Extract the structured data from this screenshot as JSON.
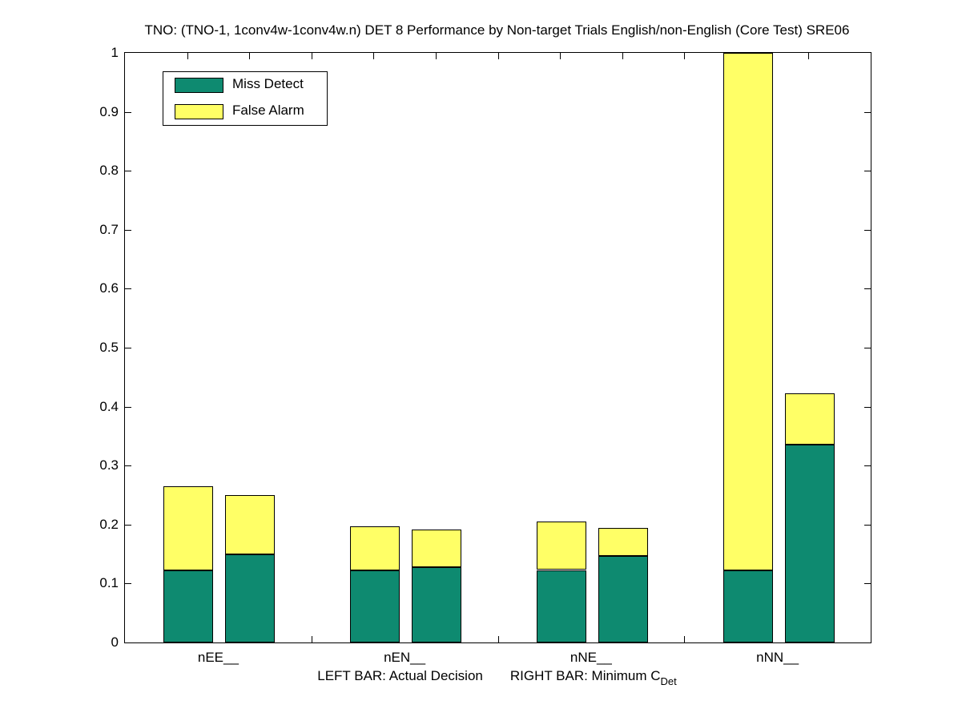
{
  "title": "TNO: (TNO-1, 1conv4w-1conv4w.n) DET 8 Performance by Non-target Trials English/non-English (Core Test) SRE06",
  "legend": [
    {
      "label": "Miss Detect",
      "color": "#0E8A70"
    },
    {
      "label": "False Alarm",
      "color": "#FFFF66"
    }
  ],
  "xlabel": {
    "left_text": "LEFT BAR: Actual Decision",
    "right_text": "RIGHT BAR: Minimum C",
    "right_subscript": "Det"
  },
  "chart_data": {
    "type": "bar",
    "stacked": true,
    "title": "TNO: (TNO-1, 1conv4w-1conv4w.n) DET 8 Performance by Non-target Trials English/non-English (Core Test) SRE06",
    "categories": [
      "nEE__",
      "nEN__",
      "nNE__",
      "nNN__"
    ],
    "series_names": [
      "Miss Detect",
      "False Alarm"
    ],
    "bar_meaning": {
      "left": "Actual Decision",
      "right": "Minimum C_Det"
    },
    "ylim": [
      0,
      1
    ],
    "ytick_values": [
      0,
      0.1,
      0.2,
      0.3,
      0.4,
      0.5,
      0.6,
      0.7,
      0.8,
      0.9,
      1
    ],
    "ytick_labels": [
      "0",
      "0.1",
      "0.2",
      "0.3",
      "0.4",
      "0.5",
      "0.6",
      "0.7",
      "0.8",
      "0.9",
      "1"
    ],
    "grid": false,
    "legend_position": "top-left-inside",
    "colors": {
      "miss_detect": "#0E8A70",
      "false_alarm": "#FFFF66"
    },
    "groups": [
      {
        "category": "nEE__",
        "left": {
          "miss_detect": 0.123,
          "false_alarm": 0.142,
          "total": 0.265
        },
        "right": {
          "miss_detect": 0.15,
          "false_alarm": 0.1,
          "total": 0.25
        }
      },
      {
        "category": "nEN__",
        "left": {
          "miss_detect": 0.123,
          "false_alarm": 0.074,
          "total": 0.197
        },
        "right": {
          "miss_detect": 0.128,
          "false_alarm": 0.063,
          "total": 0.191
        }
      },
      {
        "category": "nNE__",
        "left": {
          "miss_detect": 0.123,
          "false_alarm": 0.082,
          "total": 0.205
        },
        "right": {
          "miss_detect": 0.147,
          "false_alarm": 0.047,
          "total": 0.194
        }
      },
      {
        "category": "nNN__",
        "left": {
          "miss_detect": 0.122,
          "false_alarm": 0.878,
          "total": 1.0,
          "clipped_at_ylim": true
        },
        "right": {
          "miss_detect": 0.336,
          "false_alarm": 0.086,
          "total": 0.422
        }
      }
    ]
  }
}
